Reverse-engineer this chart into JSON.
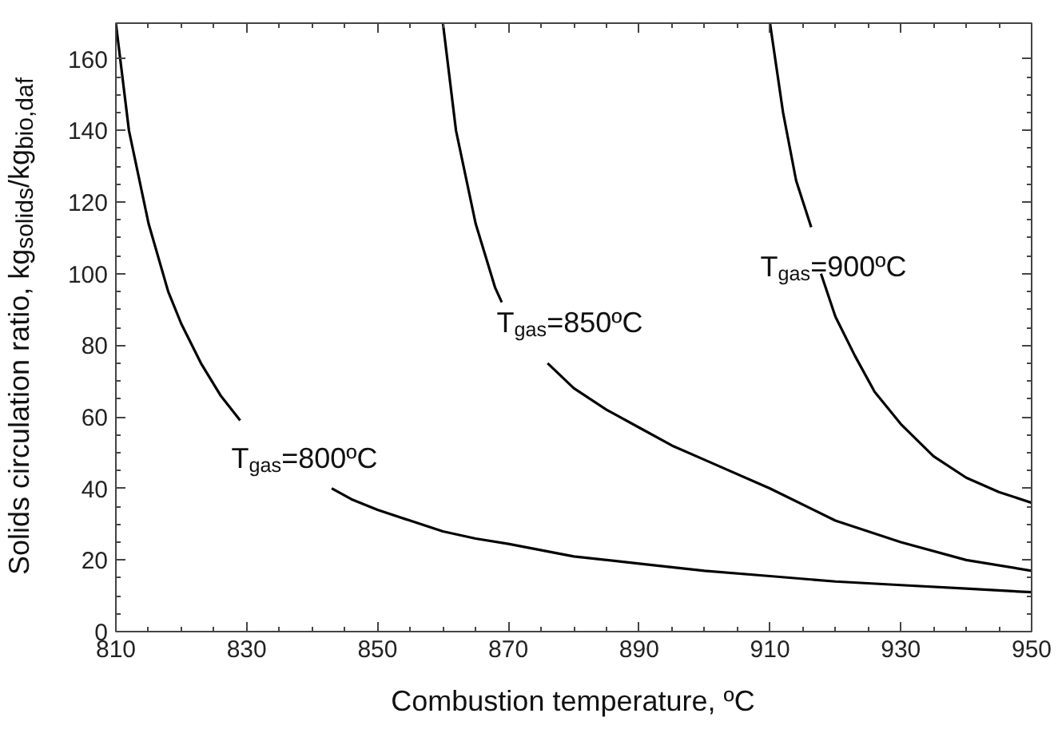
{
  "chart_data": {
    "type": "line",
    "xlabel": "Combustion temperature, ºC",
    "ylabel": "Solids circulation ratio, kg$_{solids}$/kg$_{bio,daf}$",
    "xlim": [
      810,
      950
    ],
    "ylim": [
      0,
      170
    ],
    "xticks": [
      810,
      830,
      850,
      870,
      890,
      910,
      930,
      950
    ],
    "yticks": [
      0,
      20,
      40,
      60,
      80,
      100,
      120,
      140,
      160
    ],
    "grid": false,
    "marker": "none",
    "line_style": "solid",
    "series": [
      {
        "color": "#000000",
        "x": [
          810,
          812,
          815,
          818,
          820,
          823,
          826,
          829,
          835,
          843,
          846,
          850,
          855,
          860,
          865,
          870,
          880,
          890,
          900,
          910,
          920,
          930,
          940,
          950
        ],
        "values": [
          170,
          140,
          114,
          95,
          86,
          75,
          66,
          59,
          null,
          40,
          37,
          34,
          31,
          28,
          26,
          24.5,
          21,
          19,
          17,
          15.5,
          14,
          13,
          12,
          11
        ]
      },
      {
        "color": "#000000",
        "x": [
          860,
          862,
          865,
          868,
          869,
          872,
          876,
          880,
          885,
          890,
          895,
          900,
          910,
          920,
          930,
          940,
          950
        ],
        "values": [
          170,
          140,
          114,
          96,
          92,
          null,
          75,
          68,
          62,
          57,
          52,
          48,
          40,
          31,
          25,
          20,
          17
        ]
      },
      {
        "color": "#000000",
        "x": [
          910,
          912,
          914,
          916.3,
          917,
          917.8,
          920,
          923,
          926,
          930,
          935,
          940,
          945,
          950
        ],
        "values": [
          170,
          145,
          126,
          113,
          null,
          100,
          88,
          77,
          67,
          58,
          49,
          43,
          39,
          36
        ]
      }
    ],
    "annotations": [
      "T$_{gas}$=800ºC",
      "T$_{gas}$=850ºC",
      "T$_{gas}$=900ºC"
    ]
  }
}
